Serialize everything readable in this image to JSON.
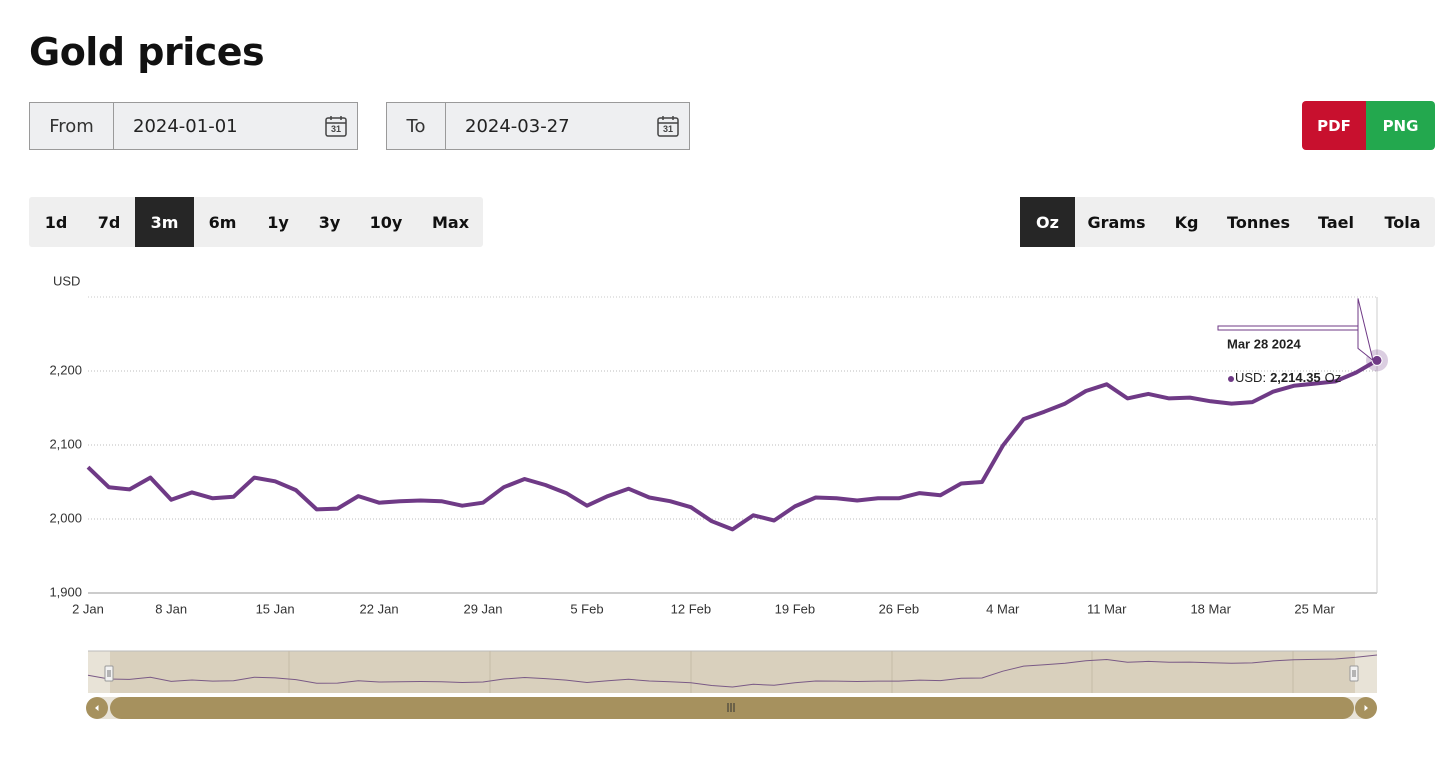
{
  "header": {
    "title": "Gold prices"
  },
  "date_range": {
    "from_label": "From",
    "from_value": "2024-01-01",
    "to_label": "To",
    "to_value": "2024-03-27",
    "icon_text": "31"
  },
  "export": [
    "PDF",
    "PNG"
  ],
  "periods": {
    "options": [
      "1d",
      "7d",
      "3m",
      "6m",
      "1y",
      "3y",
      "10y",
      "Max"
    ],
    "active": "3m"
  },
  "units": {
    "options": [
      "Oz",
      "Grams",
      "Kg",
      "Tonnes",
      "Tael",
      "Tola"
    ],
    "active": "Oz"
  },
  "chart_data": {
    "type": "line",
    "y_label": "USD",
    "color": "#6f3a86",
    "categories": [
      "2 Jan",
      null,
      null,
      null,
      "8 Jan",
      null,
      null,
      null,
      null,
      "15 Jan",
      null,
      null,
      null,
      null,
      "22 Jan",
      null,
      null,
      null,
      null,
      "29 Jan",
      null,
      null,
      null,
      null,
      "5 Feb",
      null,
      null,
      null,
      null,
      "12 Feb",
      null,
      null,
      null,
      null,
      "19 Feb",
      null,
      null,
      null,
      null,
      "26 Feb",
      null,
      null,
      null,
      null,
      "4 Mar",
      null,
      null,
      null,
      null,
      "11 Mar",
      null,
      null,
      null,
      null,
      "18 Mar",
      null,
      null,
      null,
      null,
      "25 Mar",
      null,
      null,
      null
    ],
    "values": [
      2070,
      2043,
      2040,
      2056,
      2026,
      2036,
      2028,
      2030,
      2056,
      2051,
      2039,
      2013,
      2014,
      2031,
      2022,
      2024,
      2025,
      2024,
      2018,
      2022,
      2043,
      2054,
      2046,
      2035,
      2018,
      2031,
      2041,
      2029,
      2024,
      2016,
      1997,
      1986,
      2005,
      1998,
      2017,
      2029,
      2028,
      2025,
      2028,
      2028,
      2035,
      2032,
      2048,
      2050,
      2099,
      2135,
      2145,
      2156,
      2173,
      2182,
      2163,
      2169,
      2163,
      2164,
      2159,
      2156,
      2158,
      2172,
      2180,
      2183,
      2186,
      2198,
      2214.35
    ],
    "ylim": [
      1900,
      2300
    ],
    "yticks": [
      {
        "value": 1900,
        "label": "1,900"
      },
      {
        "value": 2000,
        "label": "2,000"
      },
      {
        "value": 2100,
        "label": "2,100"
      },
      {
        "value": 2200,
        "label": "2,200"
      }
    ],
    "grid": true,
    "tooltip": {
      "date": "Mar 28 2024",
      "series_label": "USD:",
      "value_label": "2,214.35",
      "unit": "Oz"
    }
  }
}
